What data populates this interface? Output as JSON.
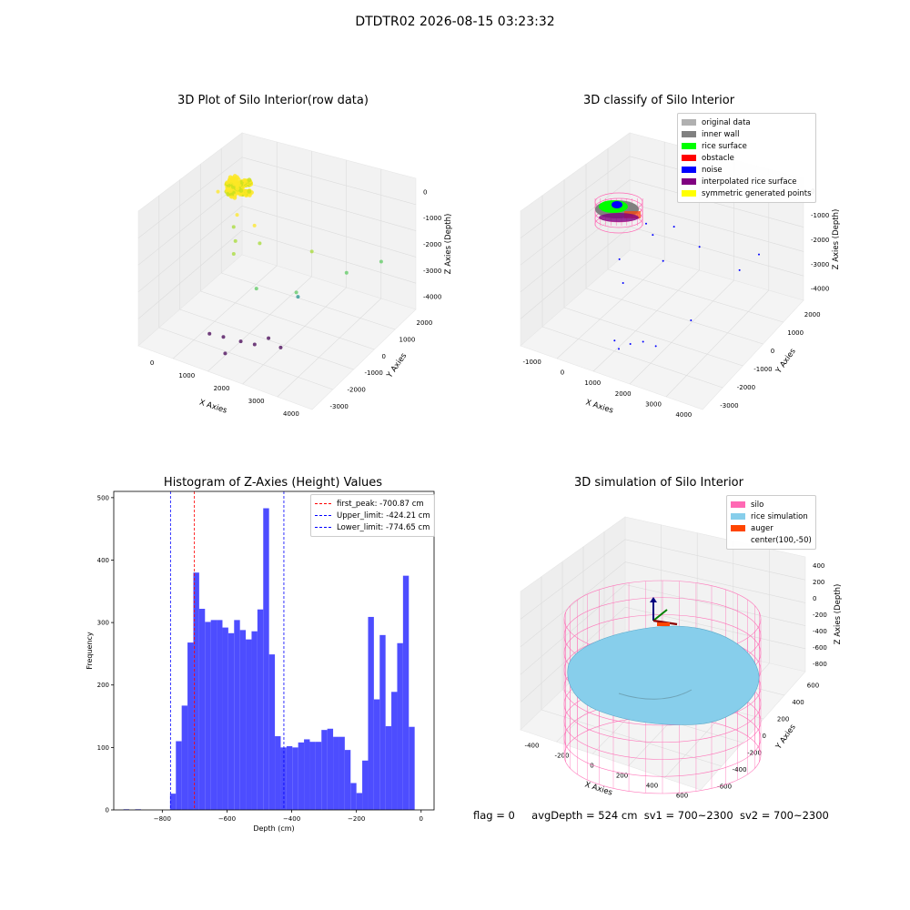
{
  "main_title": "DTDTR02 2026-08-15 03:23:32",
  "status": {
    "flag": "flag = 0",
    "avg_depth": "avgDepth = 524 cm",
    "sv1": "sv1 = 700~2300",
    "sv2": "sv2 = 700~2300"
  },
  "colors": {
    "histogram_bar": "#4d4dff",
    "first_peak": "#ff0000",
    "limits": "#0000ff",
    "silo": "#ff69b4",
    "rice_simulation": "#87ceeb",
    "auger": "#ff4500"
  },
  "chart_data": [
    {
      "type": "scatter",
      "subtype": "3d",
      "title": "3D Plot of Silo Interior(row data)",
      "xlabel": "X Axies",
      "ylabel": "Y Axies",
      "zlabel": "Z Axies (Depth)",
      "x_ticks": [
        "0",
        "1000",
        "2000",
        "3000",
        "4000"
      ],
      "y_ticks": [
        "-3000",
        "-2000",
        "-1000",
        "0",
        "1000",
        "2000"
      ],
      "z_ticks": [
        "0",
        "-1000",
        "-2000",
        "-3000",
        "-4000"
      ],
      "colormap": "viridis (by depth)",
      "points": [
        {
          "x": 0,
          "y": 0,
          "z": -100
        },
        {
          "x": 300,
          "y": 200,
          "z": -300
        },
        {
          "x": 600,
          "y": -100,
          "z": -700
        },
        {
          "x": 700,
          "y": -500,
          "z": -900
        },
        {
          "x": 900,
          "y": -800,
          "z": -1200
        },
        {
          "x": 1000,
          "y": -1100,
          "z": -1500
        },
        {
          "x": 1200,
          "y": -300,
          "z": -700
        },
        {
          "x": 1500,
          "y": -600,
          "z": -1100
        },
        {
          "x": 2100,
          "y": -2000,
          "z": -1800
        },
        {
          "x": 2800,
          "y": -200,
          "z": -1000
        },
        {
          "x": 3000,
          "y": -1500,
          "z": -1800
        },
        {
          "x": 3900,
          "y": 1600,
          "z": -2000
        },
        {
          "x": 3400,
          "y": 600,
          "z": -2100
        },
        {
          "x": 2700,
          "y": -800,
          "z": -2600
        },
        {
          "x": 1000,
          "y": -2500,
          "z": -4000
        },
        {
          "x": 1300,
          "y": -2300,
          "z": -4100
        },
        {
          "x": 1700,
          "y": -2100,
          "z": -4200
        },
        {
          "x": 2000,
          "y": -1900,
          "z": -4300
        },
        {
          "x": 2300,
          "y": -1700,
          "z": -4000
        },
        {
          "x": 2600,
          "y": -1600,
          "z": -4300
        },
        {
          "x": 1500,
          "y": -2600,
          "z": -4500
        }
      ]
    },
    {
      "type": "scatter",
      "subtype": "3d",
      "title": "3D classify of Silo Interior",
      "xlabel": "X Axies",
      "ylabel": "Y Axies",
      "zlabel": "Z Axies (Depth)",
      "x_ticks": [
        "-1000",
        "0",
        "1000",
        "2000",
        "3000",
        "4000"
      ],
      "y_ticks": [
        "-3000",
        "-2000",
        "-1000",
        "0",
        "1000",
        "2000"
      ],
      "z_ticks": [
        "0",
        "-1000",
        "-2000",
        "-3000",
        "-4000"
      ],
      "legend_position": "top-right",
      "legend": [
        {
          "label": "original data",
          "color": "#b0b0b0"
        },
        {
          "label": "inner wall",
          "color": "#808080"
        },
        {
          "label": "rice surface",
          "color": "#00ff00"
        },
        {
          "label": "obstacle",
          "color": "#ff0000"
        },
        {
          "label": "noise",
          "color": "#0000ff"
        },
        {
          "label": "interpolated rice surface",
          "color": "#800080"
        },
        {
          "label": "symmetric generated points",
          "color": "#ffff00"
        }
      ],
      "noise_points": [
        {
          "x": 700,
          "y": 0,
          "z": -800
        },
        {
          "x": 1100,
          "y": -300,
          "z": -900
        },
        {
          "x": 1500,
          "y": 200,
          "z": -700
        },
        {
          "x": 1800,
          "y": -900,
          "z": -1300
        },
        {
          "x": 2400,
          "y": 100,
          "z": -1100
        },
        {
          "x": 3700,
          "y": 1200,
          "z": -1600
        },
        {
          "x": 3300,
          "y": 800,
          "z": -2200
        },
        {
          "x": 2900,
          "y": -1200,
          "z": -3200
        },
        {
          "x": 300,
          "y": -800,
          "z": -2000
        },
        {
          "x": 600,
          "y": -1100,
          "z": -2700
        },
        {
          "x": 1100,
          "y": -2400,
          "z": -4100
        },
        {
          "x": 1500,
          "y": -2200,
          "z": -4200
        },
        {
          "x": 1800,
          "y": -2000,
          "z": -4100
        },
        {
          "x": 2100,
          "y": -1800,
          "z": -4300
        },
        {
          "x": 1300,
          "y": -2500,
          "z": -4300
        }
      ]
    },
    {
      "type": "bar",
      "subtype": "histogram",
      "title": "Histogram of Z-Axies (Height) Values",
      "xlabel": "Depth (cm)",
      "ylabel": "Frequency",
      "xlim": [
        -950,
        40
      ],
      "ylim": [
        0,
        510
      ],
      "x_ticks": [
        -800,
        -600,
        -400,
        -200,
        0
      ],
      "y_ticks": [
        0,
        100,
        200,
        300,
        400,
        500
      ],
      "bins": [
        {
          "x0": -920,
          "x1": -902,
          "count": 1
        },
        {
          "x0": -884,
          "x1": -866,
          "count": 1
        },
        {
          "x0": -776,
          "x1": -758,
          "count": 26
        },
        {
          "x0": -758,
          "x1": -740,
          "count": 110
        },
        {
          "x0": -740,
          "x1": -722,
          "count": 167
        },
        {
          "x0": -722,
          "x1": -704,
          "count": 268
        },
        {
          "x0": -704,
          "x1": -686,
          "count": 380
        },
        {
          "x0": -686,
          "x1": -668,
          "count": 322
        },
        {
          "x0": -668,
          "x1": -650,
          "count": 301
        },
        {
          "x0": -650,
          "x1": -632,
          "count": 304
        },
        {
          "x0": -632,
          "x1": -614,
          "count": 304
        },
        {
          "x0": -614,
          "x1": -596,
          "count": 292
        },
        {
          "x0": -596,
          "x1": -578,
          "count": 283
        },
        {
          "x0": -578,
          "x1": -560,
          "count": 304
        },
        {
          "x0": -560,
          "x1": -542,
          "count": 288
        },
        {
          "x0": -542,
          "x1": -524,
          "count": 273
        },
        {
          "x0": -524,
          "x1": -506,
          "count": 286
        },
        {
          "x0": -506,
          "x1": -488,
          "count": 321
        },
        {
          "x0": -488,
          "x1": -470,
          "count": 483
        },
        {
          "x0": -470,
          "x1": -452,
          "count": 249
        },
        {
          "x0": -452,
          "x1": -434,
          "count": 118
        },
        {
          "x0": -434,
          "x1": -416,
          "count": 100
        },
        {
          "x0": -416,
          "x1": -398,
          "count": 102
        },
        {
          "x0": -398,
          "x1": -380,
          "count": 100
        },
        {
          "x0": -380,
          "x1": -362,
          "count": 108
        },
        {
          "x0": -362,
          "x1": -344,
          "count": 113
        },
        {
          "x0": -344,
          "x1": -326,
          "count": 109
        },
        {
          "x0": -326,
          "x1": -308,
          "count": 109
        },
        {
          "x0": -308,
          "x1": -290,
          "count": 128
        },
        {
          "x0": -290,
          "x1": -272,
          "count": 130
        },
        {
          "x0": -272,
          "x1": -254,
          "count": 117
        },
        {
          "x0": -254,
          "x1": -236,
          "count": 117
        },
        {
          "x0": -236,
          "x1": -218,
          "count": 96
        },
        {
          "x0": -218,
          "x1": -200,
          "count": 43
        },
        {
          "x0": -200,
          "x1": -182,
          "count": 27
        },
        {
          "x0": -182,
          "x1": -164,
          "count": 79
        },
        {
          "x0": -164,
          "x1": -146,
          "count": 309
        },
        {
          "x0": -146,
          "x1": -128,
          "count": 177
        },
        {
          "x0": -128,
          "x1": -110,
          "count": 280
        },
        {
          "x0": -110,
          "x1": -92,
          "count": 134
        },
        {
          "x0": -92,
          "x1": -74,
          "count": 189
        },
        {
          "x0": -74,
          "x1": -56,
          "count": 267
        },
        {
          "x0": -56,
          "x1": -38,
          "count": 375
        },
        {
          "x0": -38,
          "x1": -20,
          "count": 133
        }
      ],
      "vlines": [
        {
          "x": -700.87,
          "label": "first_peak: -700.87 cm",
          "color": "#ff0000"
        },
        {
          "x": -424.21,
          "label": "Upper_limit: -424.21 cm",
          "color": "#0000ff"
        },
        {
          "x": -774.65,
          "label": "Lower_limit: -774.65 cm",
          "color": "#0000ff"
        }
      ],
      "legend_position": "top-right"
    },
    {
      "type": "surface",
      "subtype": "3d",
      "title": "3D simulation of Silo Interior",
      "xlabel": "X Axies",
      "ylabel": "Y Axies",
      "zlabel": "Z Axies (Depth)",
      "x_ticks": [
        "-400",
        "-200",
        "0",
        "200",
        "400",
        "600"
      ],
      "y_ticks": [
        "-600",
        "-400",
        "-200",
        "0",
        "200",
        "400",
        "600"
      ],
      "z_ticks": [
        "400",
        "200",
        "0",
        "-200",
        "-400",
        "-600",
        "-800"
      ],
      "legend_position": "top-right",
      "legend": [
        {
          "label": "silo",
          "color": "#ff69b4"
        },
        {
          "label": "rice simulation",
          "color": "#87ceeb"
        },
        {
          "label": "auger",
          "color": "#ff4500"
        },
        {
          "label": "center(100,-50)",
          "color": ""
        }
      ]
    }
  ]
}
